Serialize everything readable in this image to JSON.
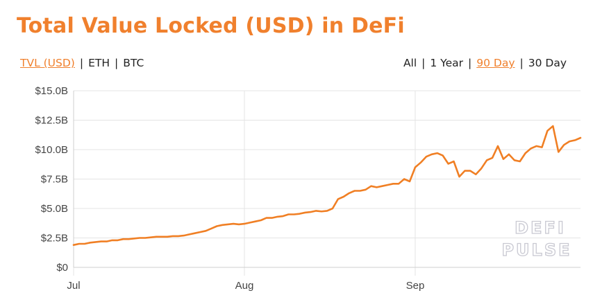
{
  "title": "Total Value Locked (USD) in DeFi",
  "metric_toggle": {
    "options": [
      "TVL (USD)",
      "ETH",
      "BTC"
    ],
    "active": "TVL (USD)"
  },
  "range_toggle": {
    "options": [
      "All",
      "1 Year",
      "90 Day",
      "30 Day"
    ],
    "active": "90 Day"
  },
  "watermark": [
    "DEFI",
    "PULSE"
  ],
  "colors": {
    "accent": "#f0802d",
    "line": "#f07f24",
    "grid": "#e4e4e4",
    "axis": "#cfcfcf"
  },
  "chart_data": {
    "type": "line",
    "title": "Total Value Locked (USD) in DeFi",
    "xlabel": "",
    "ylabel": "",
    "ylim": [
      0,
      15
    ],
    "y_unit": "B USD",
    "y_ticks": [
      "$0",
      "$2.5B",
      "$5.0B",
      "$7.5B",
      "$10.0B",
      "$12.5B",
      "$15.0B"
    ],
    "x_ticks": [
      "Jul",
      "Aug",
      "Sep"
    ],
    "x_tick_dates": [
      "2020-07-01",
      "2020-08-01",
      "2020-09-01"
    ],
    "grid": true,
    "series": [
      {
        "name": "",
        "start_date": "2020-07-01",
        "interval": "1 day",
        "values": [
          1.9,
          2.0,
          2.0,
          2.1,
          2.15,
          2.2,
          2.2,
          2.3,
          2.3,
          2.4,
          2.4,
          2.45,
          2.5,
          2.5,
          2.55,
          2.6,
          2.6,
          2.6,
          2.65,
          2.65,
          2.7,
          2.8,
          2.9,
          3.0,
          3.1,
          3.3,
          3.5,
          3.6,
          3.65,
          3.7,
          3.65,
          3.7,
          3.8,
          3.9,
          4.0,
          4.2,
          4.2,
          4.3,
          4.35,
          4.5,
          4.5,
          4.55,
          4.65,
          4.7,
          4.8,
          4.75,
          4.8,
          5.0,
          5.8,
          6.0,
          6.3,
          6.5,
          6.5,
          6.6,
          6.9,
          6.8,
          6.9,
          7.0,
          7.1,
          7.1,
          7.5,
          7.3,
          8.5,
          8.9,
          9.4,
          9.6,
          9.7,
          9.5,
          8.8,
          9.0,
          7.7,
          8.2,
          8.2,
          7.9,
          8.4,
          9.1,
          9.3,
          10.3,
          9.2,
          9.6,
          9.1,
          9.0,
          9.7,
          10.1,
          10.3,
          10.2,
          11.6,
          12.0,
          9.8,
          10.4,
          10.7,
          10.8,
          11.0
        ]
      }
    ]
  }
}
